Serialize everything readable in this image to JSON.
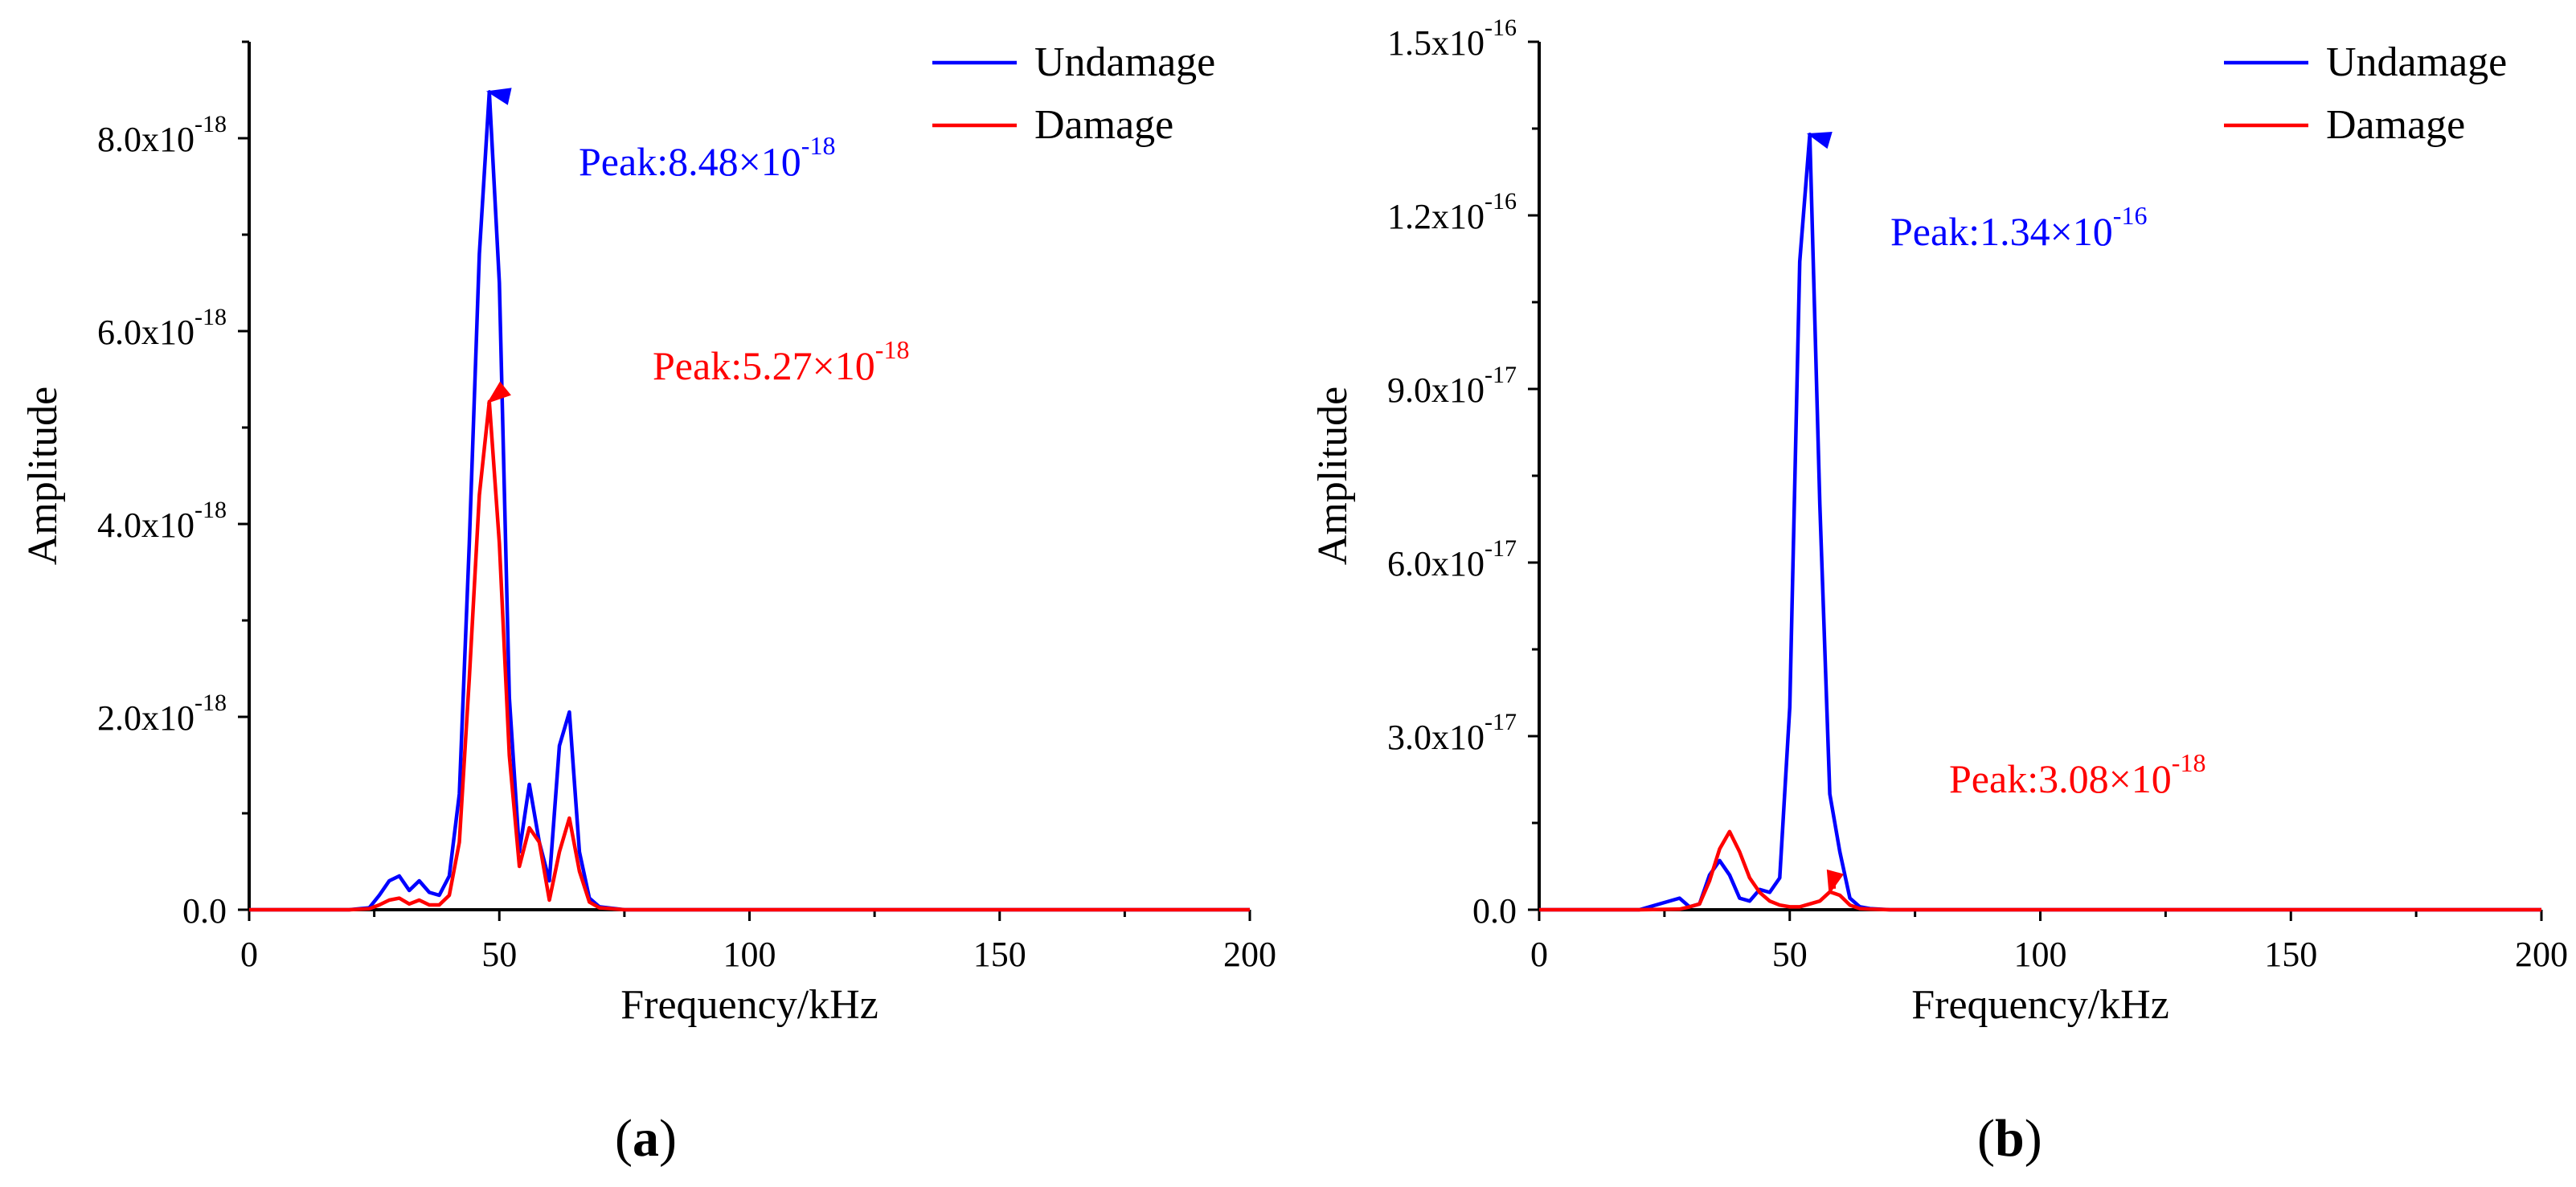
{
  "figure": {
    "panels": [
      {
        "panel_label": "a"
      },
      {
        "panel_label": "b"
      }
    ]
  },
  "colors": {
    "undamage": "#0000ff",
    "damage": "#ff0000",
    "axis": "#000000"
  },
  "chart_data": [
    {
      "type": "line",
      "panel": "a",
      "xlabel": "Frequency/kHz",
      "ylabel": "Amplitude",
      "xlim": [
        0,
        200
      ],
      "ylim": [
        0,
        9e-18
      ],
      "x_ticks": [
        0,
        50,
        100,
        150,
        200
      ],
      "x_tick_labels": [
        "0",
        "50",
        "100",
        "150",
        "200"
      ],
      "y_ticks": [
        0,
        2e-18,
        4e-18,
        6e-18,
        8e-18
      ],
      "y_tick_labels": [
        {
          "mantissa": "0.0",
          "exp": ""
        },
        {
          "mantissa": "2.0x10",
          "exp": "-18"
        },
        {
          "mantissa": "4.0x10",
          "exp": "-18"
        },
        {
          "mantissa": "6.0x10",
          "exp": "-18"
        },
        {
          "mantissa": "8.0x10",
          "exp": "-18"
        }
      ],
      "legend": {
        "placement": "top-right",
        "entries": [
          "Undamage",
          "Damage"
        ]
      },
      "series": [
        {
          "name": "Undamage",
          "color": "#0000ff",
          "x": [
            0,
            10,
            20,
            24,
            26,
            28,
            30,
            32,
            34,
            36,
            38,
            40,
            42,
            44,
            46,
            48,
            50,
            52,
            54,
            56,
            58,
            60,
            62,
            64,
            66,
            68,
            70,
            75,
            80,
            100,
            150,
            200
          ],
          "y": [
            0,
            0,
            0,
            2e-20,
            1.5e-19,
            3e-19,
            3.5e-19,
            2e-19,
            3e-19,
            1.8e-19,
            1.5e-19,
            3.5e-19,
            1.2e-18,
            3.8e-18,
            6.8e-18,
            8.48e-18,
            6.5e-18,
            2.2e-18,
            6e-19,
            1.3e-18,
            7e-19,
            3e-19,
            1.7e-18,
            2.05e-18,
            6e-19,
            1.2e-19,
            3e-20,
            0,
            0,
            0,
            0,
            0
          ]
        },
        {
          "name": "Damage",
          "color": "#ff0000",
          "x": [
            0,
            10,
            20,
            24,
            26,
            28,
            30,
            32,
            34,
            36,
            38,
            40,
            42,
            44,
            46,
            48,
            50,
            52,
            54,
            56,
            58,
            60,
            62,
            64,
            66,
            68,
            70,
            75,
            80,
            100,
            150,
            200
          ],
          "y": [
            0,
            0,
            0,
            1e-20,
            5e-20,
            1e-19,
            1.2e-19,
            6e-20,
            1e-19,
            5e-20,
            5e-20,
            1.5e-19,
            7e-19,
            2.4e-18,
            4.3e-18,
            5.27e-18,
            3.8e-18,
            1.6e-18,
            4.5e-19,
            8.5e-19,
            7e-19,
            1e-19,
            6e-19,
            9.5e-19,
            4e-19,
            8e-20,
            2e-20,
            0,
            0,
            0,
            0,
            0
          ]
        }
      ],
      "annotations": [
        {
          "series": "Undamage",
          "color": "#0000ff",
          "x": 48,
          "y": 8.48e-18,
          "label": "Peak:8.48×10",
          "exp": "-18"
        },
        {
          "series": "Damage",
          "color": "#ff0000",
          "x": 48,
          "y": 5.27e-18,
          "label": "Peak:5.27×10",
          "exp": "-18"
        }
      ]
    },
    {
      "type": "line",
      "panel": "b",
      "xlabel": "Frequency/kHz",
      "ylabel": "Amplitude",
      "xlim": [
        0,
        200
      ],
      "ylim": [
        0,
        1.5e-16
      ],
      "x_ticks": [
        0,
        50,
        100,
        150,
        200
      ],
      "x_tick_labels": [
        "0",
        "50",
        "100",
        "150",
        "200"
      ],
      "y_ticks": [
        0,
        3e-17,
        6e-17,
        9e-17,
        1.2e-16,
        1.5e-16
      ],
      "y_tick_labels": [
        {
          "mantissa": "0.0",
          "exp": ""
        },
        {
          "mantissa": "3.0x10",
          "exp": "-17"
        },
        {
          "mantissa": "6.0x10",
          "exp": "-17"
        },
        {
          "mantissa": "9.0x10",
          "exp": "-17"
        },
        {
          "mantissa": "1.2x10",
          "exp": "-16"
        },
        {
          "mantissa": "1.5x10",
          "exp": "-16"
        }
      ],
      "legend": {
        "placement": "top-right",
        "entries": [
          "Undamage",
          "Damage"
        ]
      },
      "series": [
        {
          "name": "Undamage",
          "color": "#0000ff",
          "x": [
            0,
            20,
            28,
            30,
            32,
            34,
            36,
            38,
            40,
            42,
            44,
            46,
            48,
            50,
            52,
            54,
            56,
            58,
            60,
            62,
            64,
            66,
            70,
            80,
            100,
            150,
            200
          ],
          "y": [
            0,
            0,
            2e-18,
            5e-19,
            1e-18,
            6e-18,
            8.5e-18,
            6e-18,
            2e-18,
            1.5e-18,
            3.5e-18,
            3e-18,
            5.5e-18,
            3.5e-17,
            1.12e-16,
            1.34e-16,
            7e-17,
            2e-17,
            1e-17,
            2e-18,
            5e-19,
            2e-19,
            0,
            0,
            0,
            0,
            0
          ]
        },
        {
          "name": "Damage",
          "color": "#ff0000",
          "x": [
            0,
            20,
            28,
            30,
            32,
            34,
            36,
            38,
            40,
            42,
            44,
            46,
            48,
            50,
            52,
            54,
            56,
            58,
            60,
            62,
            64,
            66,
            70,
            80,
            100,
            150,
            200
          ],
          "y": [
            0,
            0,
            1e-19,
            5e-19,
            1e-18,
            5e-18,
            1.05e-17,
            1.35e-17,
            1e-17,
            5.5e-18,
            3e-18,
            1.5e-18,
            8e-19,
            5e-19,
            5e-19,
            1e-18,
            1.5e-18,
            3.08e-18,
            2.5e-18,
            8e-19,
            2e-19,
            1e-19,
            0,
            0,
            0,
            0,
            0
          ]
        }
      ],
      "annotations": [
        {
          "series": "Undamage",
          "color": "#0000ff",
          "x": 54,
          "y": 1.34e-16,
          "label": "Peak:1.34×10",
          "exp": "-16"
        },
        {
          "series": "Damage",
          "color": "#ff0000",
          "x": 58,
          "y": 3.08e-18,
          "label": "Peak:3.08×10",
          "exp": "-18"
        }
      ]
    }
  ]
}
